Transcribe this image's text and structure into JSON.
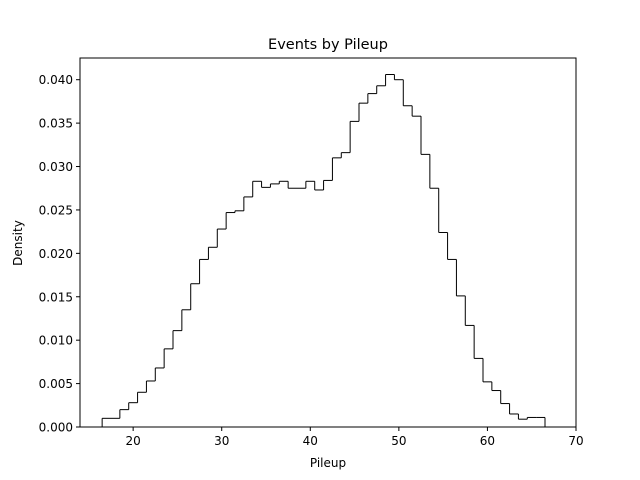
{
  "chart_data": {
    "type": "histogram",
    "title": "Events by Pileup",
    "xlabel": "Pileup",
    "ylabel": "Density",
    "xlim": [
      14,
      70
    ],
    "ylim": [
      0,
      0.0425
    ],
    "xticks": [
      20,
      30,
      40,
      50,
      60,
      70
    ],
    "xtick_labels": [
      "20",
      "30",
      "40",
      "50",
      "60",
      "70"
    ],
    "yticks": [
      0.0,
      0.005,
      0.01,
      0.015,
      0.02,
      0.025,
      0.03,
      0.035,
      0.04
    ],
    "ytick_labels": [
      "0.000",
      "0.005",
      "0.010",
      "0.015",
      "0.020",
      "0.025",
      "0.030",
      "0.035",
      "0.040"
    ],
    "bin_edges": [
      16.5,
      17.5,
      18.5,
      19.5,
      20.5,
      21.5,
      22.5,
      23.5,
      24.5,
      25.5,
      26.5,
      27.5,
      28.5,
      29.5,
      30.5,
      31.5,
      32.5,
      33.5,
      34.5,
      35.5,
      36.5,
      37.5,
      38.5,
      39.5,
      40.5,
      41.5,
      42.5,
      43.5,
      44.5,
      45.5,
      46.5,
      47.5,
      48.5,
      49.5,
      50.5,
      51.5,
      52.5,
      53.5,
      54.5,
      55.5,
      56.5,
      57.5,
      58.5,
      59.5,
      60.5,
      61.5,
      62.5,
      63.5,
      64.5,
      65.5,
      66.5,
      67.5
    ],
    "values": [
      0.001,
      0.001,
      0.002,
      0.0028,
      0.004,
      0.0053,
      0.0068,
      0.009,
      0.0111,
      0.0135,
      0.0165,
      0.0193,
      0.0207,
      0.0228,
      0.0247,
      0.0249,
      0.0265,
      0.0283,
      0.0276,
      0.028,
      0.0283,
      0.0275,
      0.0275,
      0.0283,
      0.0273,
      0.0284,
      0.031,
      0.0316,
      0.0352,
      0.0373,
      0.0384,
      0.0393,
      0.0406,
      0.04,
      0.037,
      0.0358,
      0.0314,
      0.0275,
      0.0224,
      0.0193,
      0.0151,
      0.0117,
      0.0079,
      0.0052,
      0.0042,
      0.0027,
      0.0015,
      0.0009,
      0.0011,
      0.0011,
      0.0
    ],
    "histtype": "step",
    "line_color": "#000000",
    "grid": false
  }
}
